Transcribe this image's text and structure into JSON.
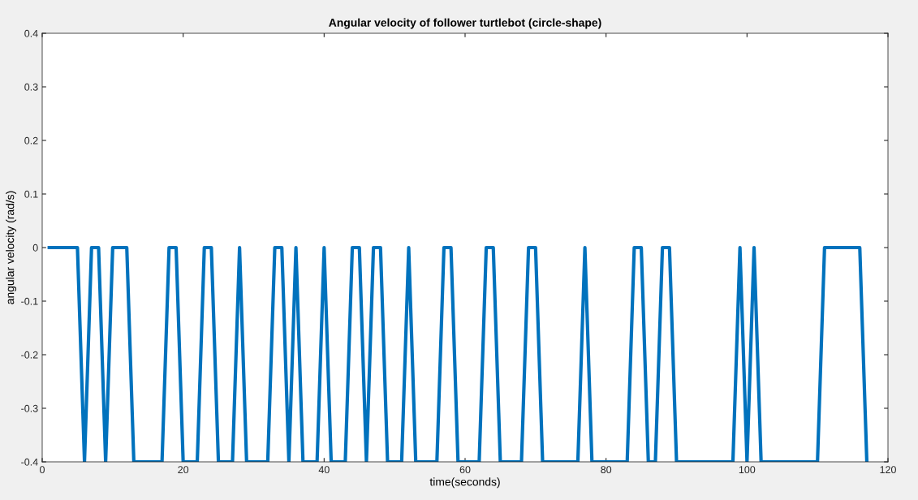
{
  "chart_data": {
    "type": "line",
    "title": "Angular velocity of follower turtlebot (circle-shape)",
    "xlabel": "time(seconds)",
    "ylabel": "angular velocity (rad/s)",
    "series": [
      {
        "color": "#0072bd",
        "x": [
          1,
          5,
          6,
          7,
          8,
          9,
          10,
          12,
          13,
          17,
          18,
          19,
          20,
          22,
          23,
          24,
          25,
          27,
          28,
          29,
          32,
          33,
          34,
          35,
          36,
          37,
          39,
          40,
          41,
          43,
          44,
          45,
          46,
          47,
          48,
          49,
          51,
          52,
          53,
          56,
          57,
          58,
          59,
          62,
          63,
          64,
          65,
          68,
          69,
          70,
          71,
          76,
          77,
          78,
          83,
          84,
          85,
          86,
          87,
          88,
          89,
          90,
          98,
          99,
          100,
          101,
          102,
          110,
          111,
          116,
          117
        ],
        "values": [
          0,
          0,
          -0.4,
          0,
          0,
          -0.4,
          0,
          0,
          -0.4,
          -0.4,
          0,
          0,
          -0.4,
          -0.4,
          0,
          0,
          -0.4,
          -0.4,
          0,
          -0.4,
          -0.4,
          0,
          0,
          -0.4,
          0,
          -0.4,
          -0.4,
          0,
          -0.4,
          -0.4,
          0,
          0,
          -0.4,
          0,
          0,
          -0.4,
          -0.4,
          0,
          -0.4,
          -0.4,
          0,
          0,
          -0.4,
          -0.4,
          0,
          0,
          -0.4,
          -0.4,
          0,
          0,
          -0.4,
          -0.4,
          0,
          -0.4,
          -0.4,
          0,
          0,
          -0.4,
          -0.4,
          0,
          0,
          -0.4,
          -0.4,
          0,
          -0.4,
          0,
          -0.4,
          -0.4,
          0,
          0,
          -0.4
        ]
      }
    ],
    "xlim": [
      0,
      120
    ],
    "xticks": [
      0,
      20,
      40,
      60,
      80,
      100,
      120
    ],
    "ylim": [
      -0.4,
      0.4
    ],
    "yticks": [
      -0.4,
      -0.3,
      -0.2,
      -0.1,
      0,
      0.1,
      0.2,
      0.3,
      0.4
    ],
    "grid": false,
    "marker": "none",
    "line_style": "solid"
  }
}
